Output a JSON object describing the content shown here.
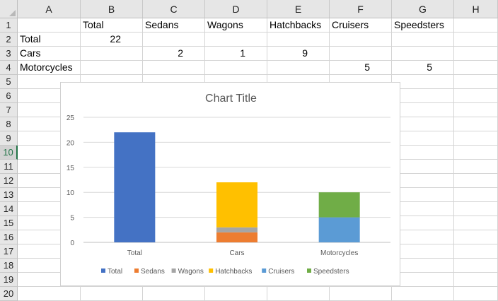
{
  "columns": [
    "A",
    "B",
    "C",
    "D",
    "E",
    "F",
    "G",
    "H"
  ],
  "rows": [
    "1",
    "2",
    "3",
    "4",
    "5",
    "6",
    "7",
    "8",
    "9",
    "10",
    "11",
    "12",
    "13",
    "14",
    "15",
    "16",
    "17",
    "18",
    "19",
    "20"
  ],
  "active_row": "10",
  "cells": {
    "r1": [
      "",
      "Total",
      "Sedans",
      "Wagons",
      "Hatchbacks",
      "Cruisers",
      "Speedsters",
      ""
    ],
    "r2": [
      "Total",
      "22",
      "",
      "",
      "",
      "",
      "",
      ""
    ],
    "r3": [
      "Cars",
      "",
      "2",
      "1",
      "9",
      "",
      "",
      ""
    ],
    "r4": [
      "Motorcycles",
      "",
      "",
      "",
      "",
      "5",
      "5",
      ""
    ]
  },
  "chart_data": {
    "type": "bar",
    "stacked": true,
    "title": "Chart Title",
    "categories": [
      "Total",
      "Cars",
      "Motorcycles"
    ],
    "series": [
      {
        "name": "Total",
        "values": [
          22,
          0,
          0
        ],
        "color": "#4472c4"
      },
      {
        "name": "Sedans",
        "values": [
          0,
          2,
          0
        ],
        "color": "#ed7d31"
      },
      {
        "name": "Wagons",
        "values": [
          0,
          1,
          0
        ],
        "color": "#a5a5a5"
      },
      {
        "name": "Hatchbacks",
        "values": [
          0,
          9,
          0
        ],
        "color": "#ffc000"
      },
      {
        "name": "Cruisers",
        "values": [
          0,
          0,
          5
        ],
        "color": "#5b9bd5"
      },
      {
        "name": "Speedsters",
        "values": [
          0,
          0,
          5
        ],
        "color": "#70ad47"
      }
    ],
    "yticks": [
      "0",
      "5",
      "10",
      "15",
      "20",
      "25"
    ],
    "ylim": [
      0,
      25
    ],
    "grid": true,
    "legend": "bottom"
  }
}
